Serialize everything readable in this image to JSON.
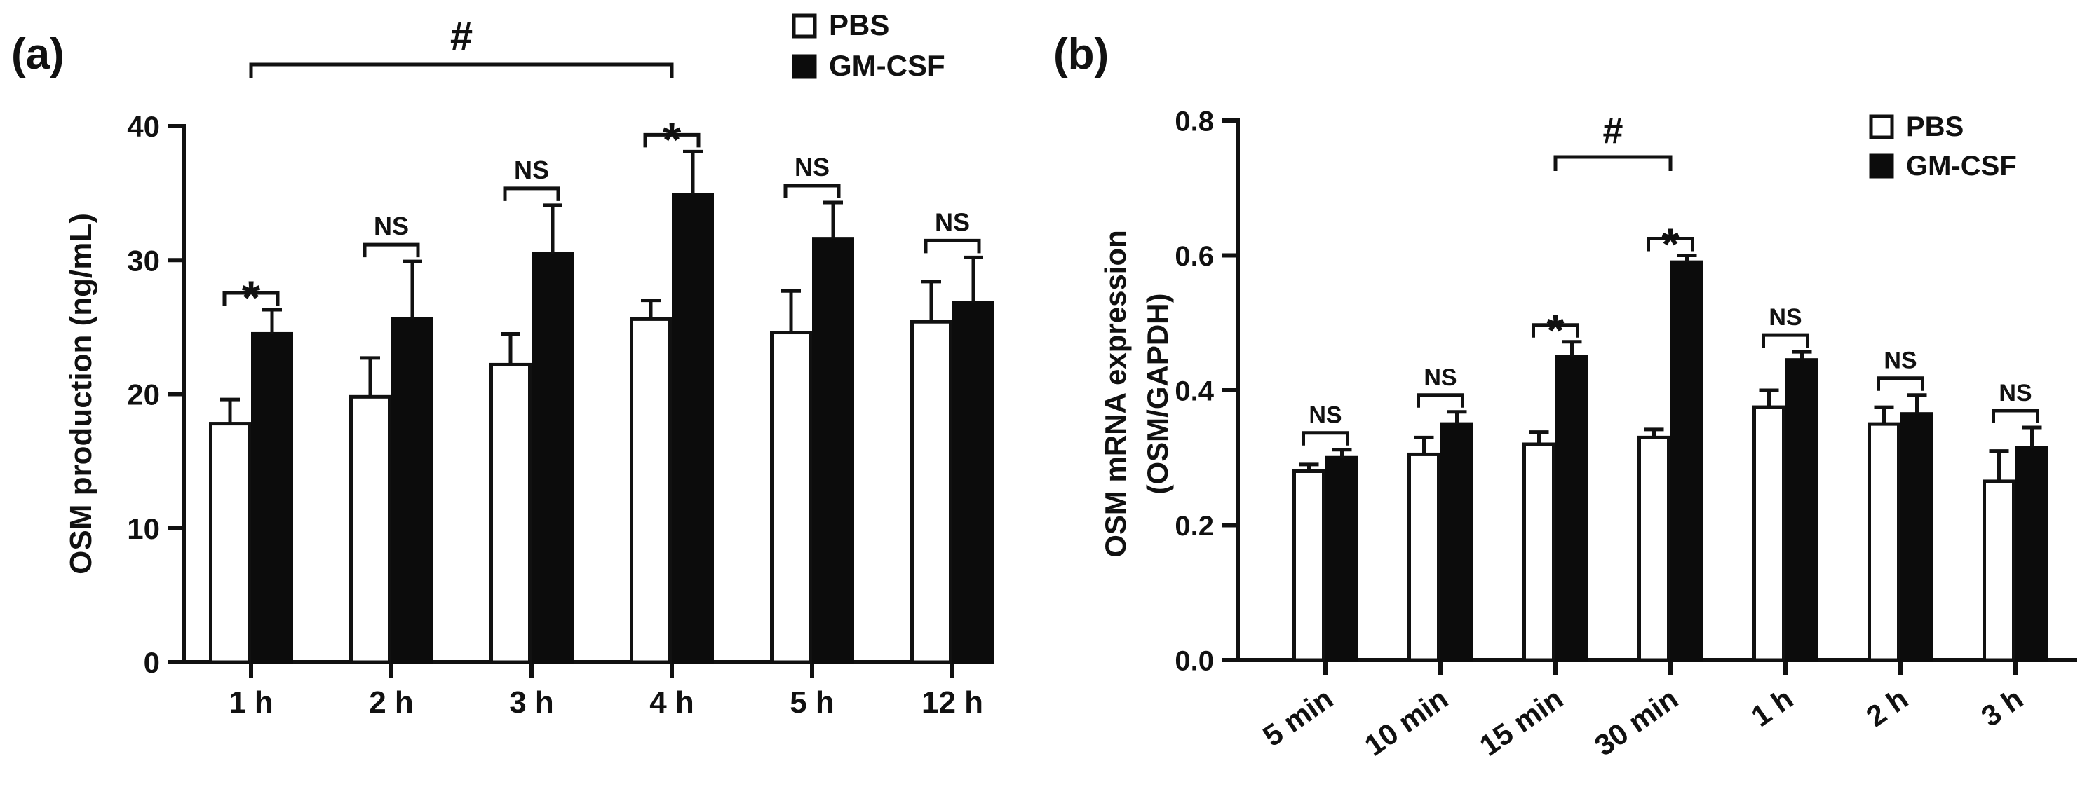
{
  "chart_data": [
    {
      "type": "bar",
      "panel_label": "(a)",
      "ylabel": "OSM production (ng/mL)",
      "xlabel": "",
      "ylim": [
        0,
        40
      ],
      "yticks": [
        0,
        10,
        20,
        30,
        40
      ],
      "categories": [
        "1 h",
        "2 h",
        "3 h",
        "4 h",
        "5 h",
        "12 h"
      ],
      "series": [
        {
          "name": "PBS",
          "color": "#ffffff",
          "values": [
            17.8,
            19.8,
            22.2,
            25.6,
            24.6,
            25.4
          ],
          "errors": [
            1.8,
            2.9,
            2.3,
            1.4,
            3.1,
            3.0
          ]
        },
        {
          "name": "GM-CSF",
          "color": "#0c0c0c",
          "values": [
            24.5,
            25.6,
            30.5,
            34.9,
            31.6,
            26.8
          ],
          "errors": [
            1.8,
            4.3,
            3.6,
            3.2,
            2.7,
            3.4
          ]
        }
      ],
      "legend": [
        "PBS",
        "GM-CSF"
      ],
      "significance": [
        "*",
        "NS",
        "NS",
        "*",
        "NS",
        "NS"
      ],
      "bracket_label": "#",
      "bracket_between": [
        "1 h",
        "4 h"
      ]
    },
    {
      "type": "bar",
      "panel_label": "(b)",
      "ylabel": "OSM mRNA expression",
      "ylabel2": "(OSM/GAPDH)",
      "xlabel": "",
      "ylim": [
        0,
        0.8
      ],
      "yticks": [
        "0.0",
        "0.2",
        "0.4",
        "0.6",
        "0.8"
      ],
      "categories": [
        "5 min",
        "10 min",
        "15 min",
        "30 min",
        "1 h",
        "2 h",
        "3 h"
      ],
      "series": [
        {
          "name": "PBS",
          "color": "#ffffff",
          "values": [
            0.28,
            0.305,
            0.32,
            0.33,
            0.375,
            0.35,
            0.265
          ],
          "errors": [
            0.01,
            0.025,
            0.018,
            0.012,
            0.025,
            0.025,
            0.045
          ]
        },
        {
          "name": "GM-CSF",
          "color": "#0c0c0c",
          "values": [
            0.3,
            0.35,
            0.45,
            0.59,
            0.445,
            0.365,
            0.315
          ],
          "errors": [
            0.012,
            0.018,
            0.022,
            0.01,
            0.012,
            0.028,
            0.03
          ]
        }
      ],
      "legend": [
        "PBS",
        "GM-CSF"
      ],
      "significance": [
        "NS",
        "NS",
        "*",
        "*",
        "NS",
        "NS",
        "NS"
      ],
      "bracket_label": "#",
      "bracket_between": [
        "15 min",
        "30 min"
      ]
    }
  ]
}
